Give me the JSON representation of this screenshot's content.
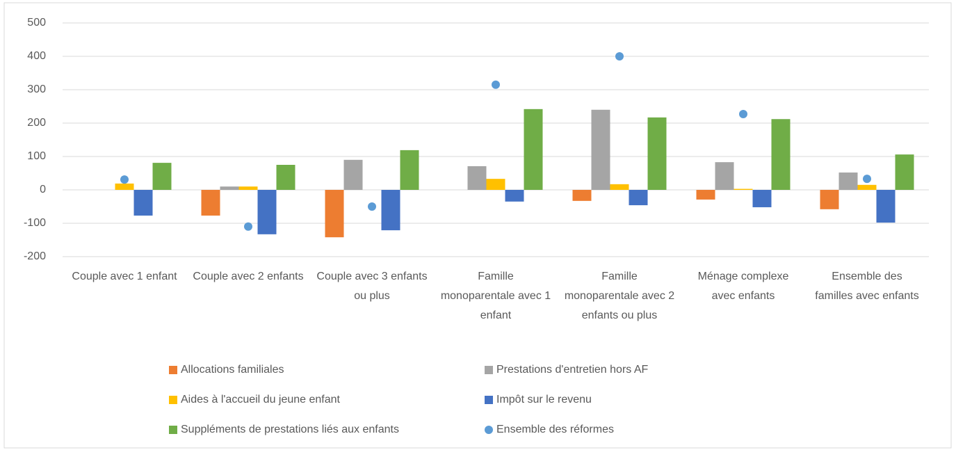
{
  "chart_data": {
    "type": "bar",
    "categories": [
      "Couple avec 1 enfant",
      "Couple avec 2 enfants",
      "Couple avec 3 enfants ou plus",
      "Famille monoparentale avec 1 enfant",
      "Famille monoparentale avec 2 enfants ou plus",
      "Ménage complexe avec enfants",
      "Ensemble des familles avec enfants"
    ],
    "series": [
      {
        "name": "Allocations familiales",
        "color": "#ed7d31",
        "values": [
          0,
          -77,
          -142,
          0,
          -33,
          -29,
          -58
        ]
      },
      {
        "name": "Prestations d'entretien hors AF",
        "color": "#a5a5a5",
        "values": [
          0,
          10,
          90,
          71,
          240,
          83,
          52
        ]
      },
      {
        "name": "Aides à l'accueil du jeune enfant",
        "color": "#ffc000",
        "values": [
          19,
          10,
          0,
          33,
          17,
          3,
          15
        ]
      },
      {
        "name": "Impôt sur le revenu",
        "color": "#4472c4",
        "values": [
          -77,
          -133,
          -121,
          -35,
          -46,
          -52,
          -98
        ]
      },
      {
        "name": "Suppléments de prestations liés aux enfants",
        "color": "#70ad47",
        "values": [
          81,
          75,
          119,
          242,
          217,
          212,
          106
        ]
      },
      {
        "name": "Ensemble des réformes",
        "color": "#5b9bd5",
        "type": "scatter",
        "values": [
          31,
          -110,
          -50,
          315,
          400,
          227,
          33
        ]
      }
    ],
    "ylim": [
      -200,
      500
    ],
    "yticks": [
      -200,
      -100,
      0,
      100,
      200,
      300,
      400,
      500
    ],
    "grid": true,
    "legend": "bottom"
  }
}
